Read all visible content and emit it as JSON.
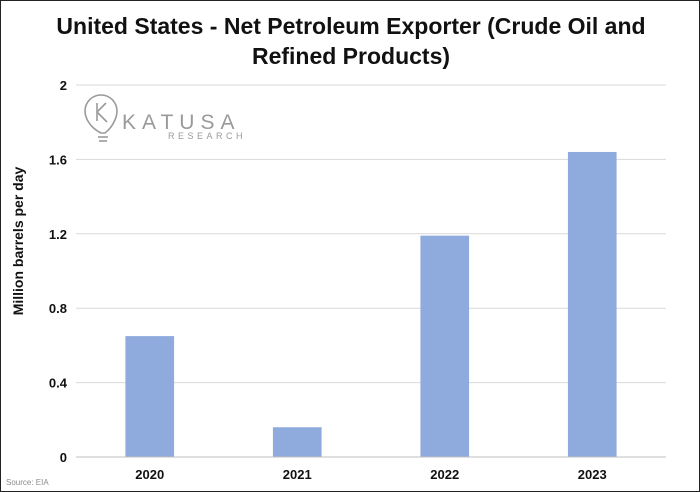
{
  "chart_data": {
    "type": "bar",
    "title": "United States - Net Petroleum Exporter (Crude Oil and Refined Products)",
    "ylabel": "Million barrels per day",
    "xlabel": "",
    "categories": [
      "2020",
      "2021",
      "2022",
      "2023"
    ],
    "values": [
      0.65,
      0.16,
      1.19,
      1.64
    ],
    "ylim": [
      0,
      2
    ],
    "yticks": [
      0,
      0.4,
      0.8,
      1.2,
      1.6,
      2
    ],
    "ytick_labels": [
      "0",
      "0.4",
      "0.8",
      "1.2",
      "1.6",
      "2"
    ],
    "grid": true,
    "legend": "none",
    "bar_color": "#8faadc",
    "grid_color": "#d9d9d9"
  },
  "logo": {
    "name": "KATUSA",
    "tagline": "RESEARCH",
    "icon": "lightbulb-k-icon",
    "color": "#9a9a9a"
  },
  "source_note": "Source: EIA"
}
